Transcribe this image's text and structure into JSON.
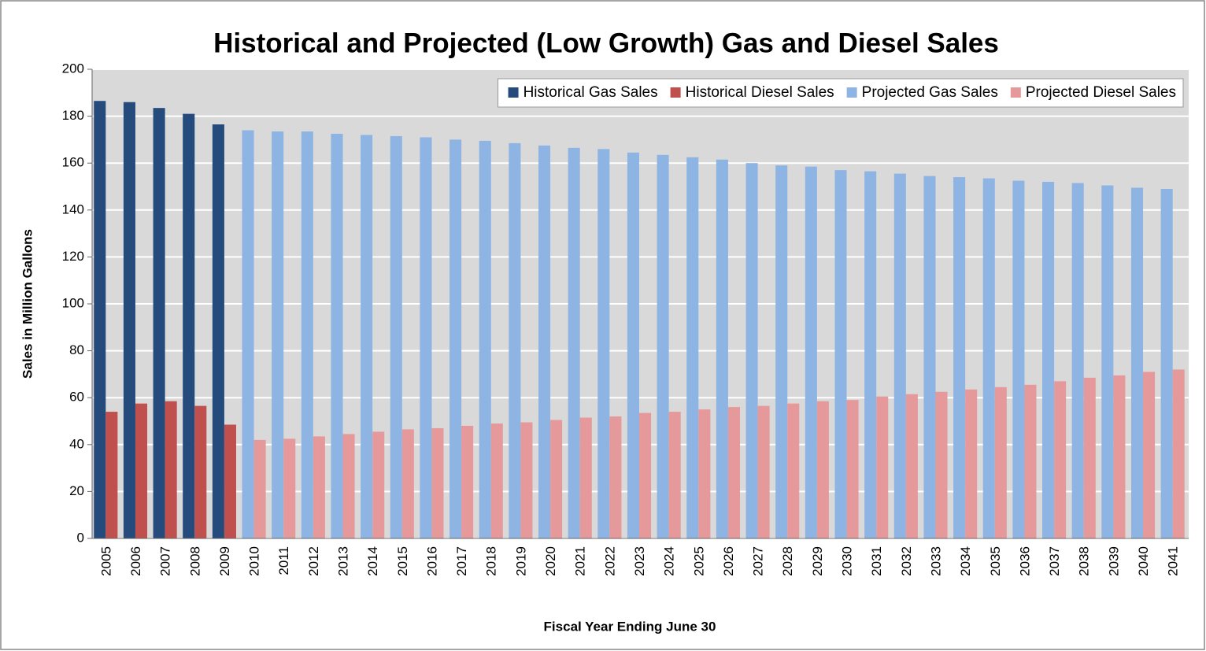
{
  "chart_data": {
    "type": "bar",
    "title": "Historical and Projected (Low Growth) Gas and Diesel Sales",
    "y_label": "Sales in Million Gallons",
    "x_label": "Fiscal Year Ending June 30",
    "categories": [
      "2005",
      "2006",
      "2007",
      "2008",
      "2009",
      "2010",
      "2011",
      "2012",
      "2013",
      "2014",
      "2015",
      "2016",
      "2017",
      "2018",
      "2019",
      "2020",
      "2021",
      "2022",
      "2023",
      "2024",
      "2025",
      "2026",
      "2027",
      "2028",
      "2029",
      "2030",
      "2031",
      "2032",
      "2033",
      "2034",
      "2035",
      "2036",
      "2037",
      "2038",
      "2039",
      "2040",
      "2041"
    ],
    "series": [
      {
        "name": "Historical Gas Sales",
        "color": "#254a7c",
        "values": [
          186.5,
          186,
          183.5,
          181,
          176.5,
          null,
          null,
          null,
          null,
          null,
          null,
          null,
          null,
          null,
          null,
          null,
          null,
          null,
          null,
          null,
          null,
          null,
          null,
          null,
          null,
          null,
          null,
          null,
          null,
          null,
          null,
          null,
          null,
          null,
          null,
          null,
          null
        ]
      },
      {
        "name": "Historical Diesel Sales",
        "color": "#c0504d",
        "values": [
          54,
          57.5,
          58.5,
          56.5,
          48.5,
          null,
          null,
          null,
          null,
          null,
          null,
          null,
          null,
          null,
          null,
          null,
          null,
          null,
          null,
          null,
          null,
          null,
          null,
          null,
          null,
          null,
          null,
          null,
          null,
          null,
          null,
          null,
          null,
          null,
          null,
          null,
          null
        ]
      },
      {
        "name": "Projected Gas Sales",
        "color": "#8db4e2",
        "values": [
          null,
          null,
          null,
          null,
          null,
          174,
          173.5,
          173.5,
          172.5,
          172,
          171.5,
          171,
          170,
          169.5,
          168.5,
          167.5,
          166.5,
          166,
          164.5,
          163.5,
          162.5,
          161.5,
          160,
          159,
          158.5,
          157,
          156.5,
          155.5,
          154.5,
          154,
          153.5,
          152.5,
          152,
          151.5,
          150.5,
          149.5,
          149
        ]
      },
      {
        "name": "Projected Diesel Sales",
        "color": "#e6999a",
        "values": [
          null,
          null,
          null,
          null,
          null,
          42,
          42.5,
          43.5,
          44.5,
          45.5,
          46.5,
          47,
          48,
          49,
          49.5,
          50.5,
          51.5,
          52,
          53.5,
          54,
          55,
          56,
          56.5,
          57.5,
          58.5,
          59,
          60.5,
          61.5,
          62.5,
          63.5,
          64.5,
          65.5,
          67,
          68.5,
          69.5,
          71,
          72
        ]
      }
    ],
    "ylim": [
      0,
      200
    ],
    "yticks": [
      0,
      20,
      40,
      60,
      80,
      100,
      120,
      140,
      160,
      180,
      200
    ],
    "grid": true,
    "legend": "top-right"
  }
}
